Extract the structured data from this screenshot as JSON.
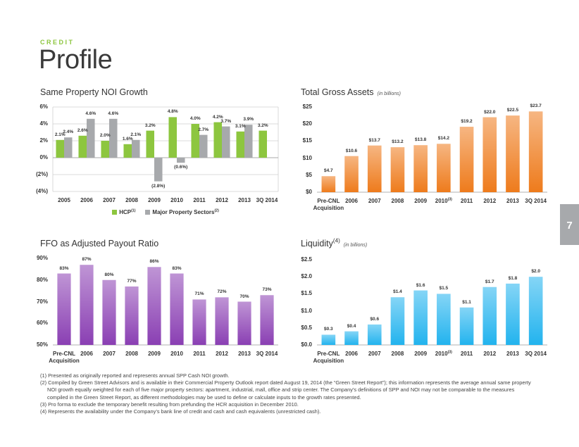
{
  "header": {
    "kicker": "CREDIT",
    "title": "Profile"
  },
  "page_number": "7",
  "footnotes": [
    "(1) Presented as originally reported and represents annual SPP Cash NOI growth.",
    "(2) Compiled by Green Street Advisors and is available in their Commercial Property Outlook report dated August 19, 2014 (the “Green Street Report”); this information represents the average annual same property NOI growth equally weighted for each of five major property sectors: apartment, industrial, mall, office and strip center. The Company’s definitions of SPP and NOI may not be comparable to the measures compiled in the Green Street Report, as different methodologies may be used to define or calculate inputs to the growth rates presented.",
    "(3) Pro forma to exclude the temporary benefit resulting from prefunding the HCR acquisition in December 2010.",
    "(4) Represents the availability under the Company’s bank line of credit and cash and cash equivalents (unrestricted cash)."
  ],
  "chart_data": [
    {
      "type": "bar",
      "title": "Same Property NOI Growth",
      "categories": [
        "2005",
        "2006",
        "2007",
        "2008",
        "2009",
        "2010",
        "2011",
        "2012",
        "2013",
        "3Q 2014"
      ],
      "series": [
        {
          "name": "HCP(1)",
          "color": "#8dc63f",
          "values": [
            2.1,
            2.6,
            2.0,
            1.6,
            3.2,
            4.8,
            4.0,
            4.2,
            3.1,
            3.2
          ],
          "value_labels": [
            "2.1%",
            "2.6%",
            "2.0%",
            "1.6%",
            "3.2%",
            "4.8%",
            "4.0%",
            "4.2%",
            "3.1%",
            "3.2%"
          ]
        },
        {
          "name": "Major Property Sectors(2)",
          "color": "#a7a9ac",
          "values": [
            2.4,
            4.6,
            4.6,
            2.1,
            -2.8,
            -0.6,
            2.7,
            3.7,
            3.9,
            null
          ],
          "value_labels": [
            "2.4%",
            "4.6%",
            "4.6%",
            "2.1%",
            "(2.8%)",
            "(0.6%)",
            "2.7%",
            "3.7%",
            "3.9%",
            null
          ]
        }
      ],
      "ylim": [
        -4,
        6
      ],
      "yticks": [
        {
          "value": -4,
          "label": "(4%)"
        },
        {
          "value": -2,
          "label": "(2%)"
        },
        {
          "value": 0,
          "label": "0%"
        },
        {
          "value": 2,
          "label": "2%"
        },
        {
          "value": 4,
          "label": "4%"
        },
        {
          "value": 6,
          "label": "6%"
        }
      ],
      "grid": true,
      "legend": "bottom"
    },
    {
      "type": "bar",
      "title": "Total Gross Assets",
      "subtitle": "(in billions)",
      "categories": [
        "Pre-CNL Acquisition",
        "2006",
        "2007",
        "2008",
        "2009",
        "2010(3)",
        "2011",
        "2012",
        "2013",
        "3Q 2014"
      ],
      "values": [
        4.7,
        10.6,
        13.7,
        13.2,
        13.8,
        14.2,
        19.2,
        22.0,
        22.5,
        23.7
      ],
      "value_labels": [
        "$4.7",
        "$10.6",
        "$13.7",
        "$13.2",
        "$13.8",
        "$14.2",
        "$19.2",
        "$22.0",
        "$22.5",
        "$23.7"
      ],
      "color": "#ee7b1c",
      "gradient": true,
      "ylim": [
        0,
        25
      ],
      "yticks": [
        {
          "value": 0,
          "label": "$0"
        },
        {
          "value": 5,
          "label": "$5"
        },
        {
          "value": 10,
          "label": "$10"
        },
        {
          "value": 15,
          "label": "$15"
        },
        {
          "value": 20,
          "label": "$20"
        },
        {
          "value": 25,
          "label": "$25"
        }
      ],
      "grid": false
    },
    {
      "type": "bar",
      "title": "FFO as Adjusted Payout Ratio",
      "categories": [
        "Pre-CNL Acquisition",
        "2006",
        "2007",
        "2008",
        "2009",
        "2010",
        "2011",
        "2012",
        "2013",
        "3Q 2014"
      ],
      "values": [
        83,
        87,
        80,
        77,
        86,
        83,
        71,
        72,
        70,
        73
      ],
      "value_labels": [
        "83%",
        "87%",
        "80%",
        "77%",
        "86%",
        "83%",
        "71%",
        "72%",
        "70%",
        "73%"
      ],
      "color": "#8a3fb3",
      "gradient": true,
      "ylim": [
        50,
        90
      ],
      "yticks": [
        {
          "value": 50,
          "label": "50%"
        },
        {
          "value": 60,
          "label": "60%"
        },
        {
          "value": 70,
          "label": "70%"
        },
        {
          "value": 80,
          "label": "80%"
        },
        {
          "value": 90,
          "label": "90%"
        }
      ],
      "grid": false
    },
    {
      "type": "bar",
      "title": "Liquidity(4)",
      "subtitle": "(in billions)",
      "categories": [
        "Pre-CNL Acquisition",
        "2006",
        "2007",
        "2008",
        "2009",
        "2010(3)",
        "2011",
        "2012",
        "2013",
        "3Q 2014"
      ],
      "values": [
        0.3,
        0.4,
        0.6,
        1.4,
        1.6,
        1.5,
        1.1,
        1.7,
        1.8,
        2.0
      ],
      "value_labels": [
        "$0.3",
        "$0.4",
        "$0.6",
        "$1.4",
        "$1.6",
        "$1.5",
        "$1.1",
        "$1.7",
        "$1.8",
        "$2.0"
      ],
      "color": "#22b3ee",
      "gradient": true,
      "ylim": [
        0,
        2.5
      ],
      "yticks": [
        {
          "value": 0,
          "label": "$0.0"
        },
        {
          "value": 0.5,
          "label": "$0.5"
        },
        {
          "value": 1,
          "label": "$1.0"
        },
        {
          "value": 1.5,
          "label": "$1.5"
        },
        {
          "value": 2,
          "label": "$2.0"
        },
        {
          "value": 2.5,
          "label": "$2.5"
        }
      ],
      "grid": false
    }
  ]
}
